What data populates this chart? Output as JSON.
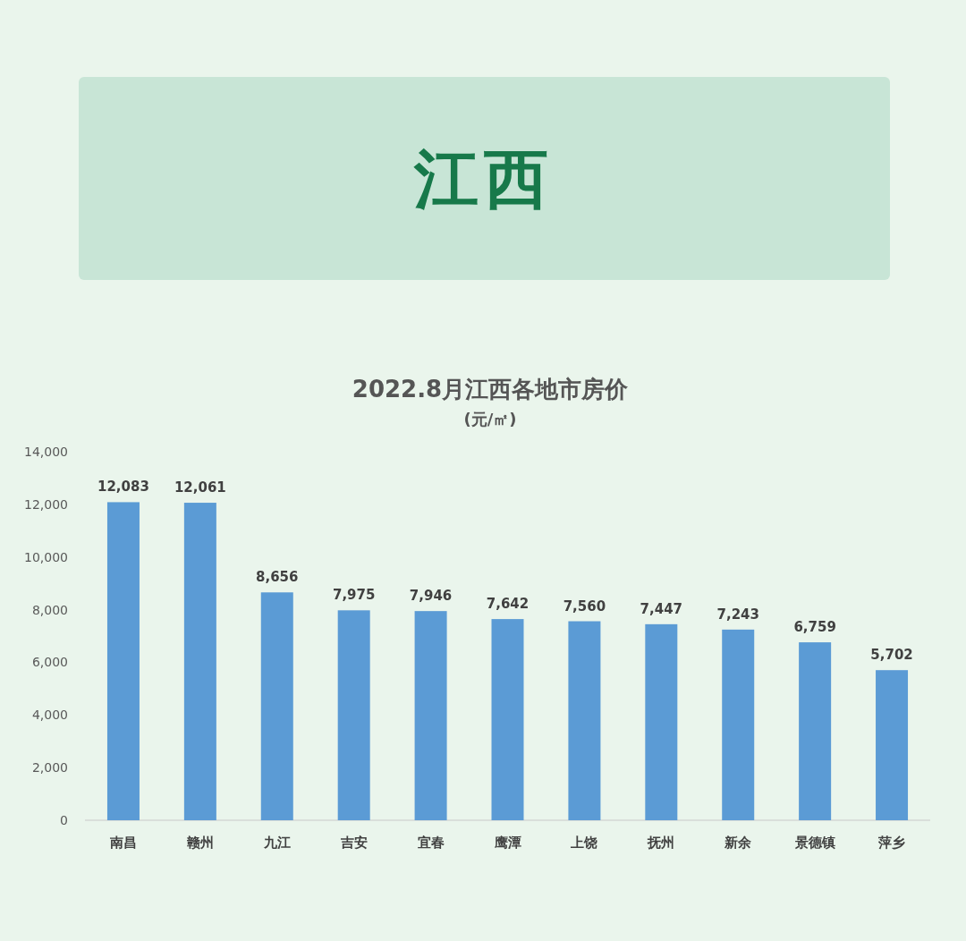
{
  "chart_data": {
    "type": "bar",
    "title": "江西",
    "subtitle": "2022.8月江西各地市房价",
    "annotations": [
      "(元/㎡)"
    ],
    "categories": [
      "南昌",
      "赣州",
      "九江",
      "吉安",
      "宜春",
      "鹰潭",
      "上饶",
      "抚州",
      "新余",
      "景德镇",
      "萍乡"
    ],
    "values": [
      12083,
      12061,
      8656,
      7975,
      7946,
      7642,
      7560,
      7447,
      7243,
      6759,
      5702
    ],
    "value_labels": [
      "12,083",
      "12,061",
      "8,656",
      "7,975",
      "7,946",
      "7,642",
      "7,560",
      "7,447",
      "7,243",
      "6,759",
      "5,702"
    ],
    "color": "#5b9bd5",
    "ylim": [
      0,
      14000
    ],
    "yticks": [
      0,
      {
        "value": 2000,
        "label": "2,000"
      },
      {
        "value": 4000,
        "label": "4,000"
      },
      {
        "value": 6000,
        "label": "6,000"
      },
      {
        "value": 8000,
        "label": "8,000"
      },
      {
        "value": 10000,
        "label": "10,000"
      },
      {
        "value": 12000,
        "label": "12,000"
      },
      {
        "value": 14000,
        "label": "14,000"
      }
    ]
  }
}
